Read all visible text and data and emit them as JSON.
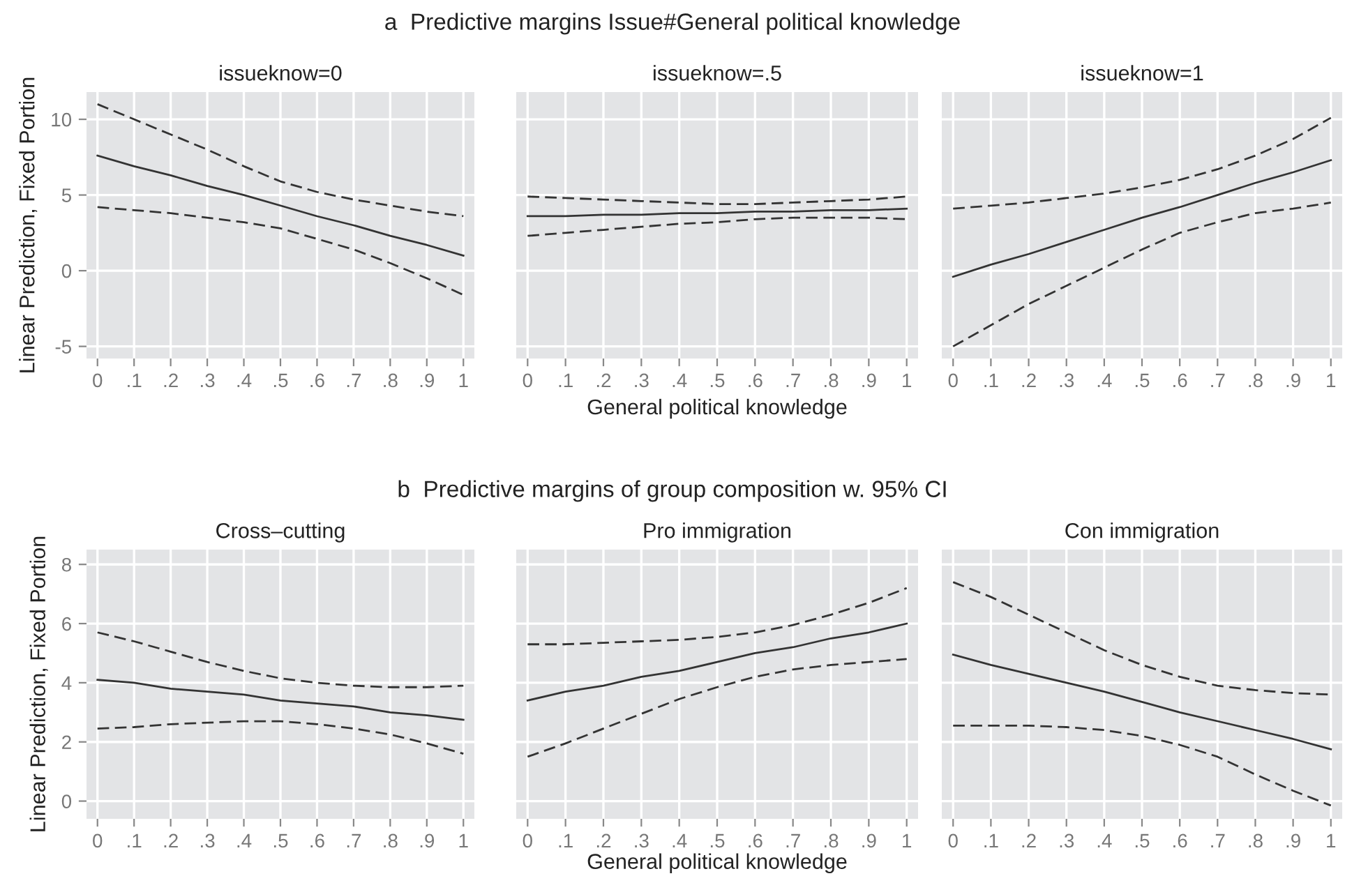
{
  "chart_data": [
    {
      "type": "line",
      "title": "issueknow=0",
      "ylabel": "Linear Prediction, Fixed Portion",
      "annotations": [
        "a  Predictive margins Issue#General political knowledge"
      ],
      "x": [
        0,
        0.1,
        0.2,
        0.3,
        0.4,
        0.5,
        0.6,
        0.7,
        0.8,
        0.9,
        1
      ],
      "series": [
        {
          "color": "#333333",
          "line_style": "solid",
          "values": [
            7.6,
            6.9,
            6.3,
            5.6,
            5.0,
            4.3,
            3.6,
            3.0,
            2.3,
            1.7,
            1.0
          ]
        },
        {
          "color": "#333333",
          "line_style": "dashed",
          "values": [
            11.0,
            10.0,
            9.0,
            8.0,
            6.9,
            5.9,
            5.2,
            4.7,
            4.3,
            3.9,
            3.6
          ]
        },
        {
          "color": "#333333",
          "line_style": "dashed",
          "values": [
            4.2,
            4.0,
            3.8,
            3.5,
            3.2,
            2.8,
            2.1,
            1.4,
            0.5,
            -0.5,
            -1.6
          ]
        }
      ],
      "xlim": [
        -0.03,
        1.03
      ],
      "ylim": [
        -5.8,
        11.8
      ],
      "xticks": [
        0,
        {
          "value": 0.1,
          "label": ".1"
        },
        {
          "value": 0.2,
          "label": ".2"
        },
        {
          "value": 0.3,
          "label": ".3"
        },
        {
          "value": 0.4,
          "label": ".4"
        },
        {
          "value": 0.5,
          "label": ".5"
        },
        {
          "value": 0.6,
          "label": ".6"
        },
        {
          "value": 0.7,
          "label": ".7"
        },
        {
          "value": 0.8,
          "label": ".8"
        },
        {
          "value": 0.9,
          "label": ".9"
        },
        1
      ],
      "yticks": [
        -5,
        0,
        5,
        10
      ],
      "grid": true,
      "marker": "none"
    },
    {
      "type": "line",
      "title": "issueknow=.5",
      "xlabel": "General political knowledge",
      "x": [
        0,
        0.1,
        0.2,
        0.3,
        0.4,
        0.5,
        0.6,
        0.7,
        0.8,
        0.9,
        1
      ],
      "series": [
        {
          "color": "#333333",
          "line_style": "solid",
          "values": [
            3.6,
            3.6,
            3.7,
            3.7,
            3.8,
            3.8,
            3.9,
            3.9,
            4.0,
            4.0,
            4.1
          ]
        },
        {
          "color": "#333333",
          "line_style": "dashed",
          "values": [
            4.9,
            4.8,
            4.7,
            4.6,
            4.5,
            4.4,
            4.4,
            4.5,
            4.6,
            4.7,
            4.9
          ]
        },
        {
          "color": "#333333",
          "line_style": "dashed",
          "values": [
            2.3,
            2.5,
            2.7,
            2.9,
            3.1,
            3.2,
            3.4,
            3.5,
            3.5,
            3.5,
            3.4
          ]
        }
      ],
      "xlim": [
        -0.03,
        1.03
      ],
      "ylim": [
        -5.8,
        11.8
      ],
      "xticks": [
        0,
        {
          "value": 0.1,
          "label": ".1"
        },
        {
          "value": 0.2,
          "label": ".2"
        },
        {
          "value": 0.3,
          "label": ".3"
        },
        {
          "value": 0.4,
          "label": ".4"
        },
        {
          "value": 0.5,
          "label": ".5"
        },
        {
          "value": 0.6,
          "label": ".6"
        },
        {
          "value": 0.7,
          "label": ".7"
        },
        {
          "value": 0.8,
          "label": ".8"
        },
        {
          "value": 0.9,
          "label": ".9"
        },
        1
      ],
      "yticks": [
        -5,
        0,
        5,
        10
      ],
      "grid": true,
      "marker": "none",
      "tick_labels": "x"
    },
    {
      "type": "line",
      "title": "issueknow=1",
      "x": [
        0,
        0.1,
        0.2,
        0.3,
        0.4,
        0.5,
        0.6,
        0.7,
        0.8,
        0.9,
        1
      ],
      "series": [
        {
          "color": "#333333",
          "line_style": "solid",
          "values": [
            -0.4,
            0.4,
            1.1,
            1.9,
            2.7,
            3.5,
            4.2,
            5.0,
            5.8,
            6.5,
            7.3
          ]
        },
        {
          "color": "#333333",
          "line_style": "dashed",
          "values": [
            4.1,
            4.3,
            4.5,
            4.8,
            5.1,
            5.5,
            6.0,
            6.7,
            7.6,
            8.7,
            10.1
          ]
        },
        {
          "color": "#333333",
          "line_style": "dashed",
          "values": [
            -5.0,
            -3.6,
            -2.2,
            -1.0,
            0.2,
            1.4,
            2.5,
            3.2,
            3.8,
            4.1,
            4.5
          ]
        }
      ],
      "xlim": [
        -0.03,
        1.03
      ],
      "ylim": [
        -5.8,
        11.8
      ],
      "xticks": [
        0,
        {
          "value": 0.1,
          "label": ".1"
        },
        {
          "value": 0.2,
          "label": ".2"
        },
        {
          "value": 0.3,
          "label": ".3"
        },
        {
          "value": 0.4,
          "label": ".4"
        },
        {
          "value": 0.5,
          "label": ".5"
        },
        {
          "value": 0.6,
          "label": ".6"
        },
        {
          "value": 0.7,
          "label": ".7"
        },
        {
          "value": 0.8,
          "label": ".8"
        },
        {
          "value": 0.9,
          "label": ".9"
        },
        1
      ],
      "yticks": [
        -5,
        0,
        5,
        10
      ],
      "grid": true,
      "marker": "none",
      "tick_labels": "x"
    },
    {
      "type": "line",
      "title": "Cross–cutting",
      "ylabel": "Linear Prediction, Fixed Portion",
      "annotations": [
        "b  Predictive margins of group composition w. 95% CI"
      ],
      "x": [
        0,
        0.1,
        0.2,
        0.3,
        0.4,
        0.5,
        0.6,
        0.7,
        0.8,
        0.9,
        1
      ],
      "series": [
        {
          "color": "#333333",
          "line_style": "solid",
          "values": [
            4.1,
            4.0,
            3.8,
            3.7,
            3.6,
            3.4,
            3.3,
            3.2,
            3.0,
            2.9,
            2.75
          ]
        },
        {
          "color": "#333333",
          "line_style": "dashed",
          "values": [
            5.7,
            5.4,
            5.05,
            4.7,
            4.4,
            4.15,
            4.0,
            3.9,
            3.85,
            3.85,
            3.9
          ]
        },
        {
          "color": "#333333",
          "line_style": "dashed",
          "values": [
            2.45,
            2.5,
            2.6,
            2.65,
            2.7,
            2.7,
            2.6,
            2.45,
            2.25,
            1.95,
            1.6
          ]
        }
      ],
      "xlim": [
        -0.03,
        1.03
      ],
      "ylim": [
        -0.6,
        8.5
      ],
      "xticks": [
        0,
        {
          "value": 0.1,
          "label": ".1"
        },
        {
          "value": 0.2,
          "label": ".2"
        },
        {
          "value": 0.3,
          "label": ".3"
        },
        {
          "value": 0.4,
          "label": ".4"
        },
        {
          "value": 0.5,
          "label": ".5"
        },
        {
          "value": 0.6,
          "label": ".6"
        },
        {
          "value": 0.7,
          "label": ".7"
        },
        {
          "value": 0.8,
          "label": ".8"
        },
        {
          "value": 0.9,
          "label": ".9"
        },
        1
      ],
      "yticks": [
        0,
        2,
        4,
        6,
        8
      ],
      "grid": true,
      "marker": "none"
    },
    {
      "type": "line",
      "title": "Pro immigration",
      "xlabel": "General political knowledge",
      "x": [
        0,
        0.1,
        0.2,
        0.3,
        0.4,
        0.5,
        0.6,
        0.7,
        0.8,
        0.9,
        1
      ],
      "series": [
        {
          "color": "#333333",
          "line_style": "solid",
          "values": [
            3.4,
            3.7,
            3.9,
            4.2,
            4.4,
            4.7,
            5.0,
            5.2,
            5.5,
            5.7,
            6.0
          ]
        },
        {
          "color": "#333333",
          "line_style": "dashed",
          "values": [
            5.3,
            5.3,
            5.35,
            5.4,
            5.45,
            5.55,
            5.7,
            5.95,
            6.3,
            6.7,
            7.2
          ]
        },
        {
          "color": "#333333",
          "line_style": "dashed",
          "values": [
            1.5,
            1.95,
            2.45,
            2.95,
            3.45,
            3.85,
            4.2,
            4.45,
            4.6,
            4.7,
            4.8
          ]
        }
      ],
      "xlim": [
        -0.03,
        1.03
      ],
      "ylim": [
        -0.6,
        8.5
      ],
      "xticks": [
        0,
        {
          "value": 0.1,
          "label": ".1"
        },
        {
          "value": 0.2,
          "label": ".2"
        },
        {
          "value": 0.3,
          "label": ".3"
        },
        {
          "value": 0.4,
          "label": ".4"
        },
        {
          "value": 0.5,
          "label": ".5"
        },
        {
          "value": 0.6,
          "label": ".6"
        },
        {
          "value": 0.7,
          "label": ".7"
        },
        {
          "value": 0.8,
          "label": ".8"
        },
        {
          "value": 0.9,
          "label": ".9"
        },
        1
      ],
      "yticks": [
        0,
        2,
        4,
        6,
        8
      ],
      "grid": true,
      "marker": "none",
      "tick_labels": "x"
    },
    {
      "type": "line",
      "title": "Con immigration",
      "x": [
        0,
        0.1,
        0.2,
        0.3,
        0.4,
        0.5,
        0.6,
        0.7,
        0.8,
        0.9,
        1
      ],
      "series": [
        {
          "color": "#333333",
          "line_style": "solid",
          "values": [
            4.95,
            4.6,
            4.3,
            4.0,
            3.7,
            3.35,
            3.0,
            2.7,
            2.4,
            2.1,
            1.75
          ]
        },
        {
          "color": "#333333",
          "line_style": "dashed",
          "values": [
            7.4,
            6.9,
            6.3,
            5.7,
            5.1,
            4.6,
            4.2,
            3.9,
            3.75,
            3.65,
            3.6
          ]
        },
        {
          "color": "#333333",
          "line_style": "dashed",
          "values": [
            2.55,
            2.55,
            2.55,
            2.5,
            2.4,
            2.2,
            1.9,
            1.5,
            0.9,
            0.35,
            -0.15
          ]
        }
      ],
      "xlim": [
        -0.03,
        1.03
      ],
      "ylim": [
        -0.6,
        8.5
      ],
      "xticks": [
        0,
        {
          "value": 0.1,
          "label": ".1"
        },
        {
          "value": 0.2,
          "label": ".2"
        },
        {
          "value": 0.3,
          "label": ".3"
        },
        {
          "value": 0.4,
          "label": ".4"
        },
        {
          "value": 0.5,
          "label": ".5"
        },
        {
          "value": 0.6,
          "label": ".6"
        },
        {
          "value": 0.7,
          "label": ".7"
        },
        {
          "value": 0.8,
          "label": ".8"
        },
        {
          "value": 0.9,
          "label": ".9"
        },
        1
      ],
      "yticks": [
        0,
        2,
        4,
        6,
        8
      ],
      "grid": true,
      "marker": "none",
      "tick_labels": "x"
    }
  ]
}
